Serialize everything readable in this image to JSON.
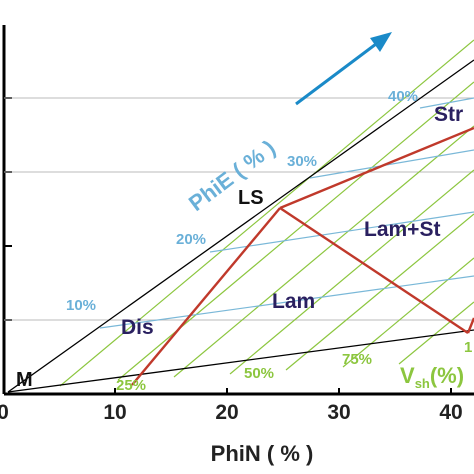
{
  "x_axis": {
    "label": "PhiN ( % )",
    "ticks": [
      "0",
      "10",
      "20",
      "30",
      "40"
    ]
  },
  "phie": {
    "axis_label": "PhiE ( % )",
    "lines": [
      "10%",
      "20%",
      "30%",
      "40%"
    ]
  },
  "vsh": {
    "axis_label_main": "V",
    "axis_label_sub": "sh",
    "axis_label_tail": "(%)",
    "lines": [
      "25%",
      "50%",
      "75%",
      "1"
    ]
  },
  "points": {
    "matrix": "M",
    "laminated_shale": "LS"
  },
  "regions": {
    "dispersed": "Dis",
    "laminated": "Lam",
    "laminated_structural": "Lam+St",
    "structural": "Str"
  },
  "colors": {
    "envelope": "#000000",
    "model_lines": "#c0392b",
    "porosity_lines": "#7ab8d8",
    "shale_lines": "#8cc63f",
    "region_text": "#2a2060",
    "arrow": "#1a8ac8"
  }
}
